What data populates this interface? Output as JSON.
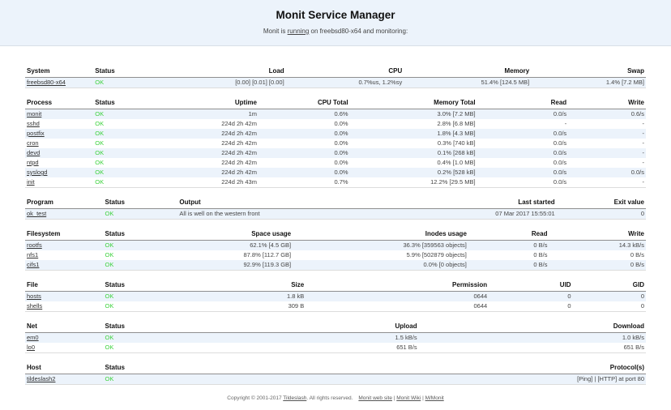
{
  "colors": {
    "ok_green": "#3cd23c",
    "stripe": "#ecf3fb",
    "banner": "#ecf3fb"
  },
  "header": {
    "title": "Monit Service Manager",
    "subtitle_prefix": "Monit is ",
    "subtitle_link": "running",
    "subtitle_suffix": " on freebsd80-x64 and monitoring:"
  },
  "tables": [
    {
      "id": "system",
      "columns": [
        "System",
        "Status",
        "Load",
        "CPU",
        "Memory",
        "Swap"
      ],
      "rows": [
        [
          "freebsd80-x64",
          "OK",
          "[0.00] [0.01] [0.00]",
          "0.7%us, 1.2%sy",
          "51.4% [124.5 MB]",
          "1.4% [7.2 MB]"
        ]
      ]
    },
    {
      "id": "process",
      "columns": [
        "Process",
        "Status",
        "Uptime",
        "CPU Total",
        "Memory Total",
        "Read",
        "Write"
      ],
      "rows": [
        [
          "monit",
          "OK",
          "1m",
          "0.6%",
          "3.0% [7.2 MB]",
          "0.0/s",
          "0.6/s"
        ],
        [
          "sshd",
          "OK",
          "224d 2h 42m",
          "0.0%",
          "2.8% [6.8 MB]",
          "-",
          "-"
        ],
        [
          "postfix",
          "OK",
          "224d 2h 42m",
          "0.0%",
          "1.8% [4.3 MB]",
          "0.0/s",
          "-"
        ],
        [
          "cron",
          "OK",
          "224d 2h 42m",
          "0.0%",
          "0.3% [740 kB]",
          "0.0/s",
          "-"
        ],
        [
          "devd",
          "OK",
          "224d 2h 42m",
          "0.0%",
          "0.1% [268 kB]",
          "0.0/s",
          "-"
        ],
        [
          "ntpd",
          "OK",
          "224d 2h 42m",
          "0.0%",
          "0.4% [1.0 MB]",
          "0.0/s",
          "-"
        ],
        [
          "syslogd",
          "OK",
          "224d 2h 42m",
          "0.0%",
          "0.2% [528 kB]",
          "0.0/s",
          "0.0/s"
        ],
        [
          "init",
          "OK",
          "224d 2h 43m",
          "0.7%",
          "12.2% [29.5 MB]",
          "0.0/s",
          "-"
        ]
      ]
    },
    {
      "id": "program",
      "columns": [
        "Program",
        "Status",
        "Output",
        "Last started",
        "Exit value"
      ],
      "rows": [
        [
          "ok_test",
          "OK",
          "All is well on the western front",
          "07 Mar 2017 15:55:01",
          "0"
        ]
      ]
    },
    {
      "id": "filesystem",
      "columns": [
        "Filesystem",
        "Status",
        "Space usage",
        "Inodes usage",
        "Read",
        "Write"
      ],
      "rows": [
        [
          "rootfs",
          "OK",
          "62.1% [4.5 GB]",
          "36.3% [359563 objects]",
          "0 B/s",
          "14.3 kB/s"
        ],
        [
          "nfs1",
          "OK",
          "87.8% [112.7 GB]",
          "5.9% [502879 objects]",
          "0 B/s",
          "0 B/s"
        ],
        [
          "cifs1",
          "OK",
          "92.9% [119.3 GB]",
          "0.0% [0 objects]",
          "0 B/s",
          "0 B/s"
        ]
      ]
    },
    {
      "id": "file",
      "columns": [
        "File",
        "Status",
        "Size",
        "Permission",
        "UID",
        "GID"
      ],
      "rows": [
        [
          "hosts",
          "OK",
          "1.8 kB",
          "0644",
          "0",
          "0"
        ],
        [
          "shells",
          "OK",
          "309 B",
          "0644",
          "0",
          "0"
        ]
      ]
    },
    {
      "id": "net",
      "columns": [
        "Net",
        "Status",
        "Upload",
        "Download"
      ],
      "rows": [
        [
          "em0",
          "OK",
          "1.5 kB/s",
          "1.0 kB/s"
        ],
        [
          "lo0",
          "OK",
          "651 B/s",
          "651 B/s"
        ]
      ]
    },
    {
      "id": "host",
      "columns": [
        "Host",
        "Status",
        "Protocol(s)"
      ],
      "rows": [
        [
          "tildeslash2",
          "OK",
          "[Ping] | [HTTP] at port 80"
        ]
      ]
    }
  ],
  "footer": {
    "copyright_prefix": "Copyright © 2001-2017 ",
    "tildeslash_link": "Tildeslash",
    "copyright_suffix": ". All rights reserved.",
    "links": [
      "Monit web site",
      "Monit Wiki",
      "M/Monit"
    ],
    "separator": "|"
  }
}
